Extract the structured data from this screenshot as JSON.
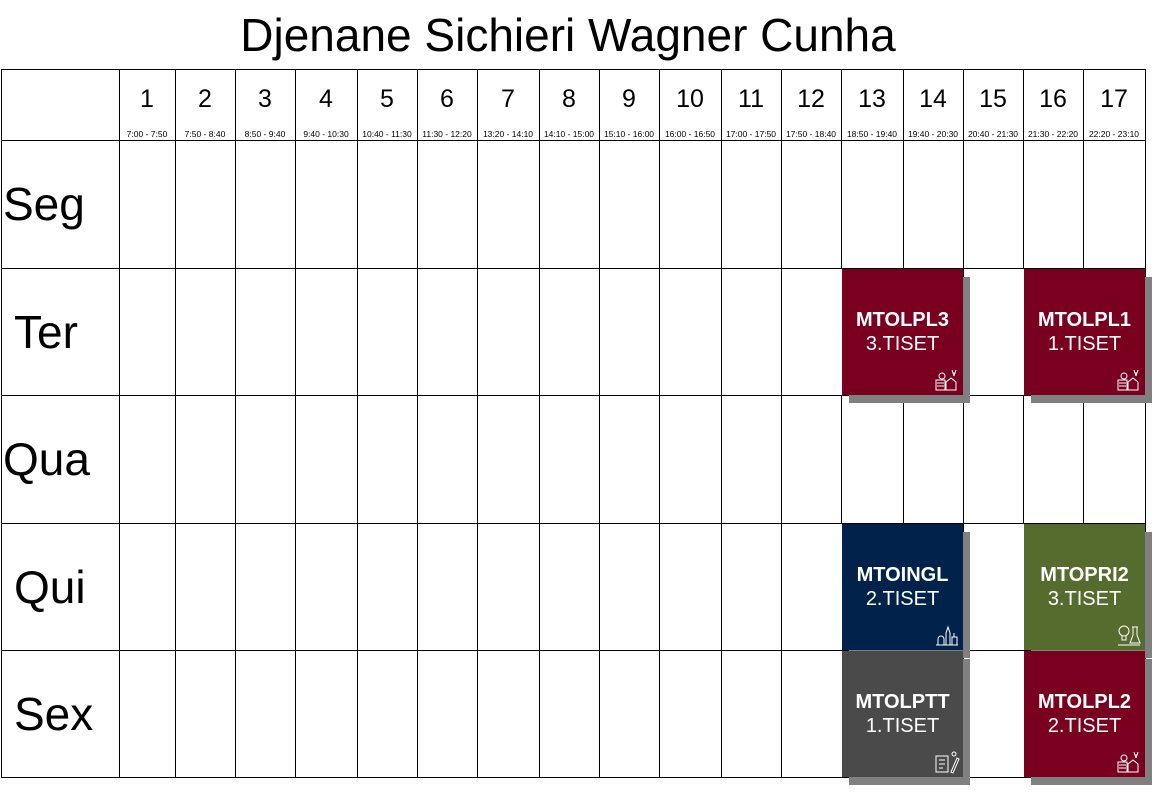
{
  "title": "Djenane Sichieri Wagner Cunha",
  "periods": [
    {
      "num": "1",
      "time": "7:00 - 7:50"
    },
    {
      "num": "2",
      "time": "7:50 - 8:40"
    },
    {
      "num": "3",
      "time": "8:50 - 9:40"
    },
    {
      "num": "4",
      "time": "9:40 - 10:30"
    },
    {
      "num": "5",
      "time": "10:40 - 11:30"
    },
    {
      "num": "6",
      "time": "11:30 - 12:20"
    },
    {
      "num": "7",
      "time": "13:20 - 14:10"
    },
    {
      "num": "8",
      "time": "14:10 - 15:00"
    },
    {
      "num": "9",
      "time": "15:10 - 16:00"
    },
    {
      "num": "10",
      "time": "16:00 - 16:50"
    },
    {
      "num": "11",
      "time": "17:00 - 17:50"
    },
    {
      "num": "12",
      "time": "17:50 - 18:40"
    },
    {
      "num": "13",
      "time": "18:50 - 19:40"
    },
    {
      "num": "14",
      "time": "19:40 - 20:30"
    },
    {
      "num": "15",
      "time": "20:40 - 21:30"
    },
    {
      "num": "16",
      "time": "21:30 - 22:20"
    },
    {
      "num": "17",
      "time": "22:20 - 23:10"
    }
  ],
  "days": [
    "Seg",
    "Ter",
    "Qua",
    "Qui",
    "Sex"
  ],
  "classes": [
    {
      "day": 1,
      "start": 13,
      "span": 2,
      "code": "MTOLPL3",
      "group": "3.TISET",
      "color": "#7a0020",
      "icon": "language-arts-icon"
    },
    {
      "day": 1,
      "start": 16,
      "span": 2,
      "code": "MTOLPL1",
      "group": "1.TISET",
      "color": "#7a0020",
      "icon": "language-arts-icon"
    },
    {
      "day": 3,
      "start": 13,
      "span": 2,
      "code": "MTOINGL",
      "group": "2.TISET",
      "color": "#01224a",
      "icon": "city-landmarks-icon"
    },
    {
      "day": 3,
      "start": 16,
      "span": 2,
      "code": "MTOPRI2",
      "group": "3.TISET",
      "color": "#566b2e",
      "icon": "lab-idea-icon"
    },
    {
      "day": 4,
      "start": 13,
      "span": 2,
      "code": "MTOLPTT",
      "group": "1.TISET",
      "color": "#4a4a4a",
      "icon": "document-tools-icon"
    },
    {
      "day": 4,
      "start": 16,
      "span": 2,
      "code": "MTOLPL2",
      "group": "2.TISET",
      "color": "#7a0020",
      "icon": "language-arts-icon"
    }
  ]
}
